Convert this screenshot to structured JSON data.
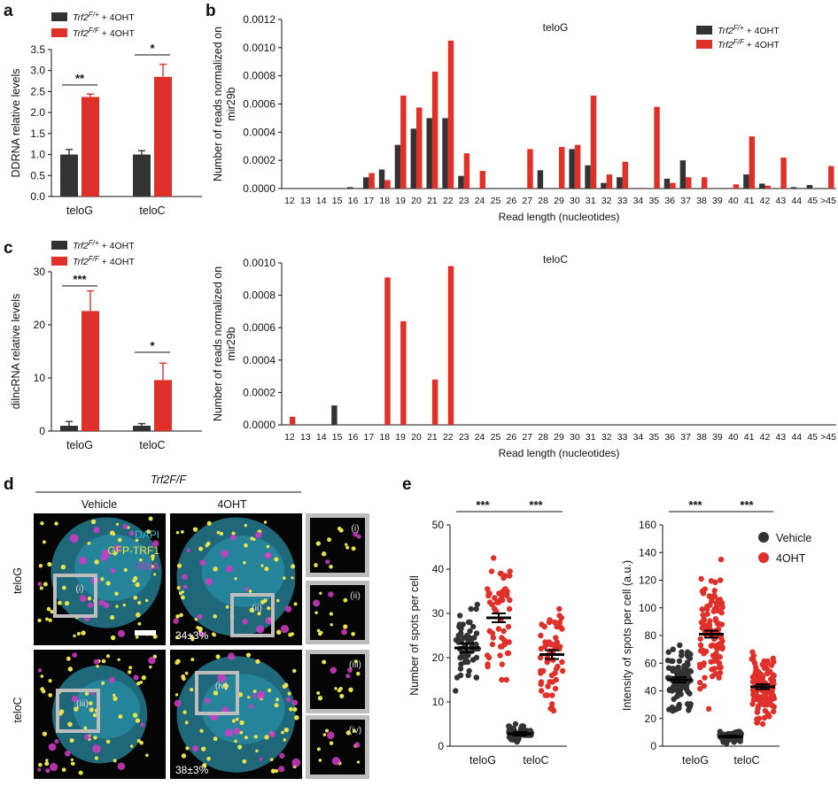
{
  "colors": {
    "vehicle": "#333333",
    "ohT": "#e0302a",
    "dapi": "#35b9d9",
    "gfp": "#e9e24a",
    "rna": "#d43ac7",
    "frame": "#bdbdbd"
  },
  "panels": {
    "a": "a",
    "b": "b",
    "c": "c",
    "d": "d",
    "e": "e"
  },
  "chart_data": [
    {
      "id": "a",
      "type": "bar",
      "ylabel": "DDRNA relative levels",
      "ylim": [
        0,
        3.5
      ],
      "yticks": [
        "0.0",
        "0.5",
        "1.0",
        "1.5",
        "2.0",
        "2.5",
        "3.0",
        "3.5"
      ],
      "categories": [
        "teloG",
        "teloC"
      ],
      "series": [
        {
          "name": "Trf2 F/+ + 4OHT",
          "values": [
            1.0,
            1.0
          ],
          "errors": [
            0.12,
            0.09
          ]
        },
        {
          "name": "Trf2 F/F + 4OHT",
          "values": [
            2.37,
            2.85
          ],
          "errors": [
            0.07,
            0.3
          ]
        }
      ],
      "legend": [
        "Trf2F/+ + 4OHT",
        "Trf2F/F + 4OHT"
      ],
      "significance": [
        "**",
        "*"
      ]
    },
    {
      "id": "b",
      "type": "bar",
      "title": "teloG",
      "xlabel": "Read length (nucleotides)",
      "ylabel": "Number of reads normalized on mir29b",
      "ylim": [
        0,
        0.0012
      ],
      "yticks": [
        "0.0000",
        "0.0002",
        "0.0004",
        "0.0006",
        "0.0008",
        "0.0010",
        "0.0012"
      ],
      "categories": [
        "12",
        "13",
        "14",
        "15",
        "16",
        "17",
        "18",
        "19",
        "20",
        "21",
        "22",
        "23",
        "24",
        "25",
        "26",
        "27",
        "28",
        "29",
        "30",
        "31",
        "32",
        "33",
        "34",
        "35",
        "36",
        "37",
        "38",
        "39",
        "40",
        "41",
        "42",
        "43",
        "44",
        "45",
        ">45"
      ],
      "series": [
        {
          "name": "Trf2 F/+ + 4OHT",
          "values": [
            0,
            0,
            0,
            0,
            1e-05,
            8e-05,
            0.000135,
            0.00031,
            0.000425,
            0.0005,
            0.0005,
            9e-05,
            0,
            0,
            0,
            0,
            0.00013,
            0,
            0.00028,
            0.000165,
            4e-05,
            8e-05,
            0,
            0,
            7e-05,
            0.0002,
            0,
            0,
            0,
            0.0001,
            3.5e-05,
            0,
            1e-05,
            2.5e-05,
            0
          ]
        },
        {
          "name": "Trf2 F/F + 4OHT",
          "values": [
            0,
            0,
            0,
            0,
            0,
            0.00011,
            6e-05,
            0.00066,
            0.000575,
            0.00083,
            0.00105,
            0.00025,
            0.000125,
            0,
            0,
            0.00028,
            0,
            0.000295,
            0.00031,
            0.00066,
            0.0001,
            0.00019,
            5e-06,
            0.00058,
            4e-05,
            8e-05,
            8e-05,
            0,
            3e-05,
            0.00037,
            2e-05,
            0.00022,
            0,
            0,
            0.00016
          ]
        }
      ],
      "legend": [
        "Trf2F/+ + 4OHT",
        "Trf2F/F + 4OHT"
      ]
    },
    {
      "id": "c",
      "type": "bar",
      "ylabel": "dilncRNA relative levels",
      "ylim": [
        0,
        30
      ],
      "yticks": [
        "0",
        "10",
        "20",
        "30"
      ],
      "categories": [
        "teloG",
        "teloC"
      ],
      "series": [
        {
          "name": "Trf2 F/+ + 4OHT",
          "values": [
            1.0,
            1.0
          ],
          "errors": [
            0.8,
            0.4
          ]
        },
        {
          "name": "Trf2 F/F + 4OHT",
          "values": [
            22.6,
            9.6
          ],
          "errors": [
            3.8,
            3.2
          ]
        }
      ],
      "legend": [
        "Trf2F/+ + 4OHT",
        "Trf2F/F + 4OHT"
      ],
      "significance": [
        "***",
        "*"
      ]
    },
    {
      "id": "b2",
      "type": "bar",
      "title": "teloC",
      "xlabel": "Read length (nucleotides)",
      "ylabel": "Number of reads normalized on mir29b",
      "ylim": [
        0,
        0.001
      ],
      "yticks": [
        "0.0000",
        "0.0002",
        "0.0004",
        "0.0006",
        "0.0008",
        "0.0010"
      ],
      "categories": [
        "12",
        "13",
        "14",
        "15",
        "16",
        "17",
        "18",
        "19",
        "20",
        "21",
        "22",
        "23",
        "24",
        "25",
        "26",
        "27",
        "28",
        "29",
        "30",
        "31",
        "32",
        "33",
        "34",
        "35",
        "36",
        "37",
        "38",
        "39",
        "40",
        "41",
        "42",
        "43",
        "44",
        "45",
        ">45"
      ],
      "series": [
        {
          "name": "Trf2 F/+ + 4OHT",
          "values": [
            0,
            0,
            0,
            0.00012,
            0,
            0,
            0,
            0,
            0,
            0,
            0,
            0,
            0,
            0,
            0,
            0,
            0,
            0,
            0,
            0,
            0,
            0,
            0,
            0,
            0,
            0,
            0,
            0,
            0,
            0,
            0,
            0,
            0,
            0,
            0
          ]
        },
        {
          "name": "Trf2 F/F + 4OHT",
          "values": [
            5e-05,
            0,
            0,
            0,
            0,
            0,
            0.00091,
            0.00064,
            0,
            0.00028,
            0.00098,
            0,
            0,
            0,
            0,
            0,
            0,
            0,
            0,
            0,
            0,
            0,
            0,
            0,
            0,
            0,
            0,
            0,
            0,
            0,
            0,
            0,
            0,
            0,
            0
          ]
        }
      ]
    },
    {
      "id": "e1",
      "type": "scatter",
      "ylabel": "Number of spots per cell",
      "ylim": [
        0,
        50
      ],
      "yticks": [
        "0",
        "10",
        "20",
        "30",
        "40",
        "50"
      ],
      "categories": [
        "teloG",
        "teloC"
      ],
      "groups": [
        {
          "category": "teloG",
          "series": "Vehicle",
          "mean": 22.2,
          "sem": 1.0,
          "min": 10,
          "max": 34,
          "n": 60
        },
        {
          "category": "teloG",
          "series": "4OHT",
          "mean": 29.0,
          "sem": 1.0,
          "min": 12,
          "max": 45,
          "n": 60
        },
        {
          "category": "teloC",
          "series": "Vehicle",
          "mean": 2.8,
          "sem": 0.4,
          "min": 0,
          "max": 6,
          "n": 50
        },
        {
          "category": "teloC",
          "series": "4OHT",
          "mean": 20.7,
          "sem": 1.0,
          "min": 5,
          "max": 35,
          "n": 60
        }
      ],
      "significance": [
        "***",
        "***"
      ]
    },
    {
      "id": "e2",
      "type": "scatter",
      "ylabel": "Intensity of spots per cell (a.u.)",
      "ylim": [
        0,
        160
      ],
      "yticks": [
        "0",
        "20",
        "40",
        "60",
        "80",
        "100",
        "120",
        "140",
        "160"
      ],
      "categories": [
        "teloG",
        "teloC"
      ],
      "groups": [
        {
          "category": "teloG",
          "series": "Vehicle",
          "mean": 48,
          "sem": 2,
          "min": 13,
          "max": 80,
          "n": 110
        },
        {
          "category": "teloG",
          "series": "4OHT",
          "mean": 81,
          "sem": 2.5,
          "min": 10,
          "max": 140,
          "n": 110
        },
        {
          "category": "teloC",
          "series": "Vehicle",
          "mean": 7,
          "sem": 0.7,
          "min": 2,
          "max": 13,
          "n": 70
        },
        {
          "category": "teloC",
          "series": "4OHT",
          "mean": 43,
          "sem": 1.8,
          "min": 5,
          "max": 78,
          "n": 120
        }
      ],
      "legend": [
        "Vehicle",
        "4OHT"
      ],
      "significance": [
        "***",
        "***"
      ]
    }
  ],
  "micrographs": {
    "header": "Trf2F/F",
    "columns": [
      "Vehicle",
      "4OHT"
    ],
    "rows": [
      "teloG",
      "teloC"
    ],
    "channels": [
      "DAPI",
      "GFP-TRF1",
      "RNA"
    ],
    "percent_4oht_telog": "34±3%",
    "percent_4oht_teloc": "38±3%",
    "insets": [
      "(i)",
      "(ii)",
      "(iii)",
      "(iv)"
    ]
  }
}
